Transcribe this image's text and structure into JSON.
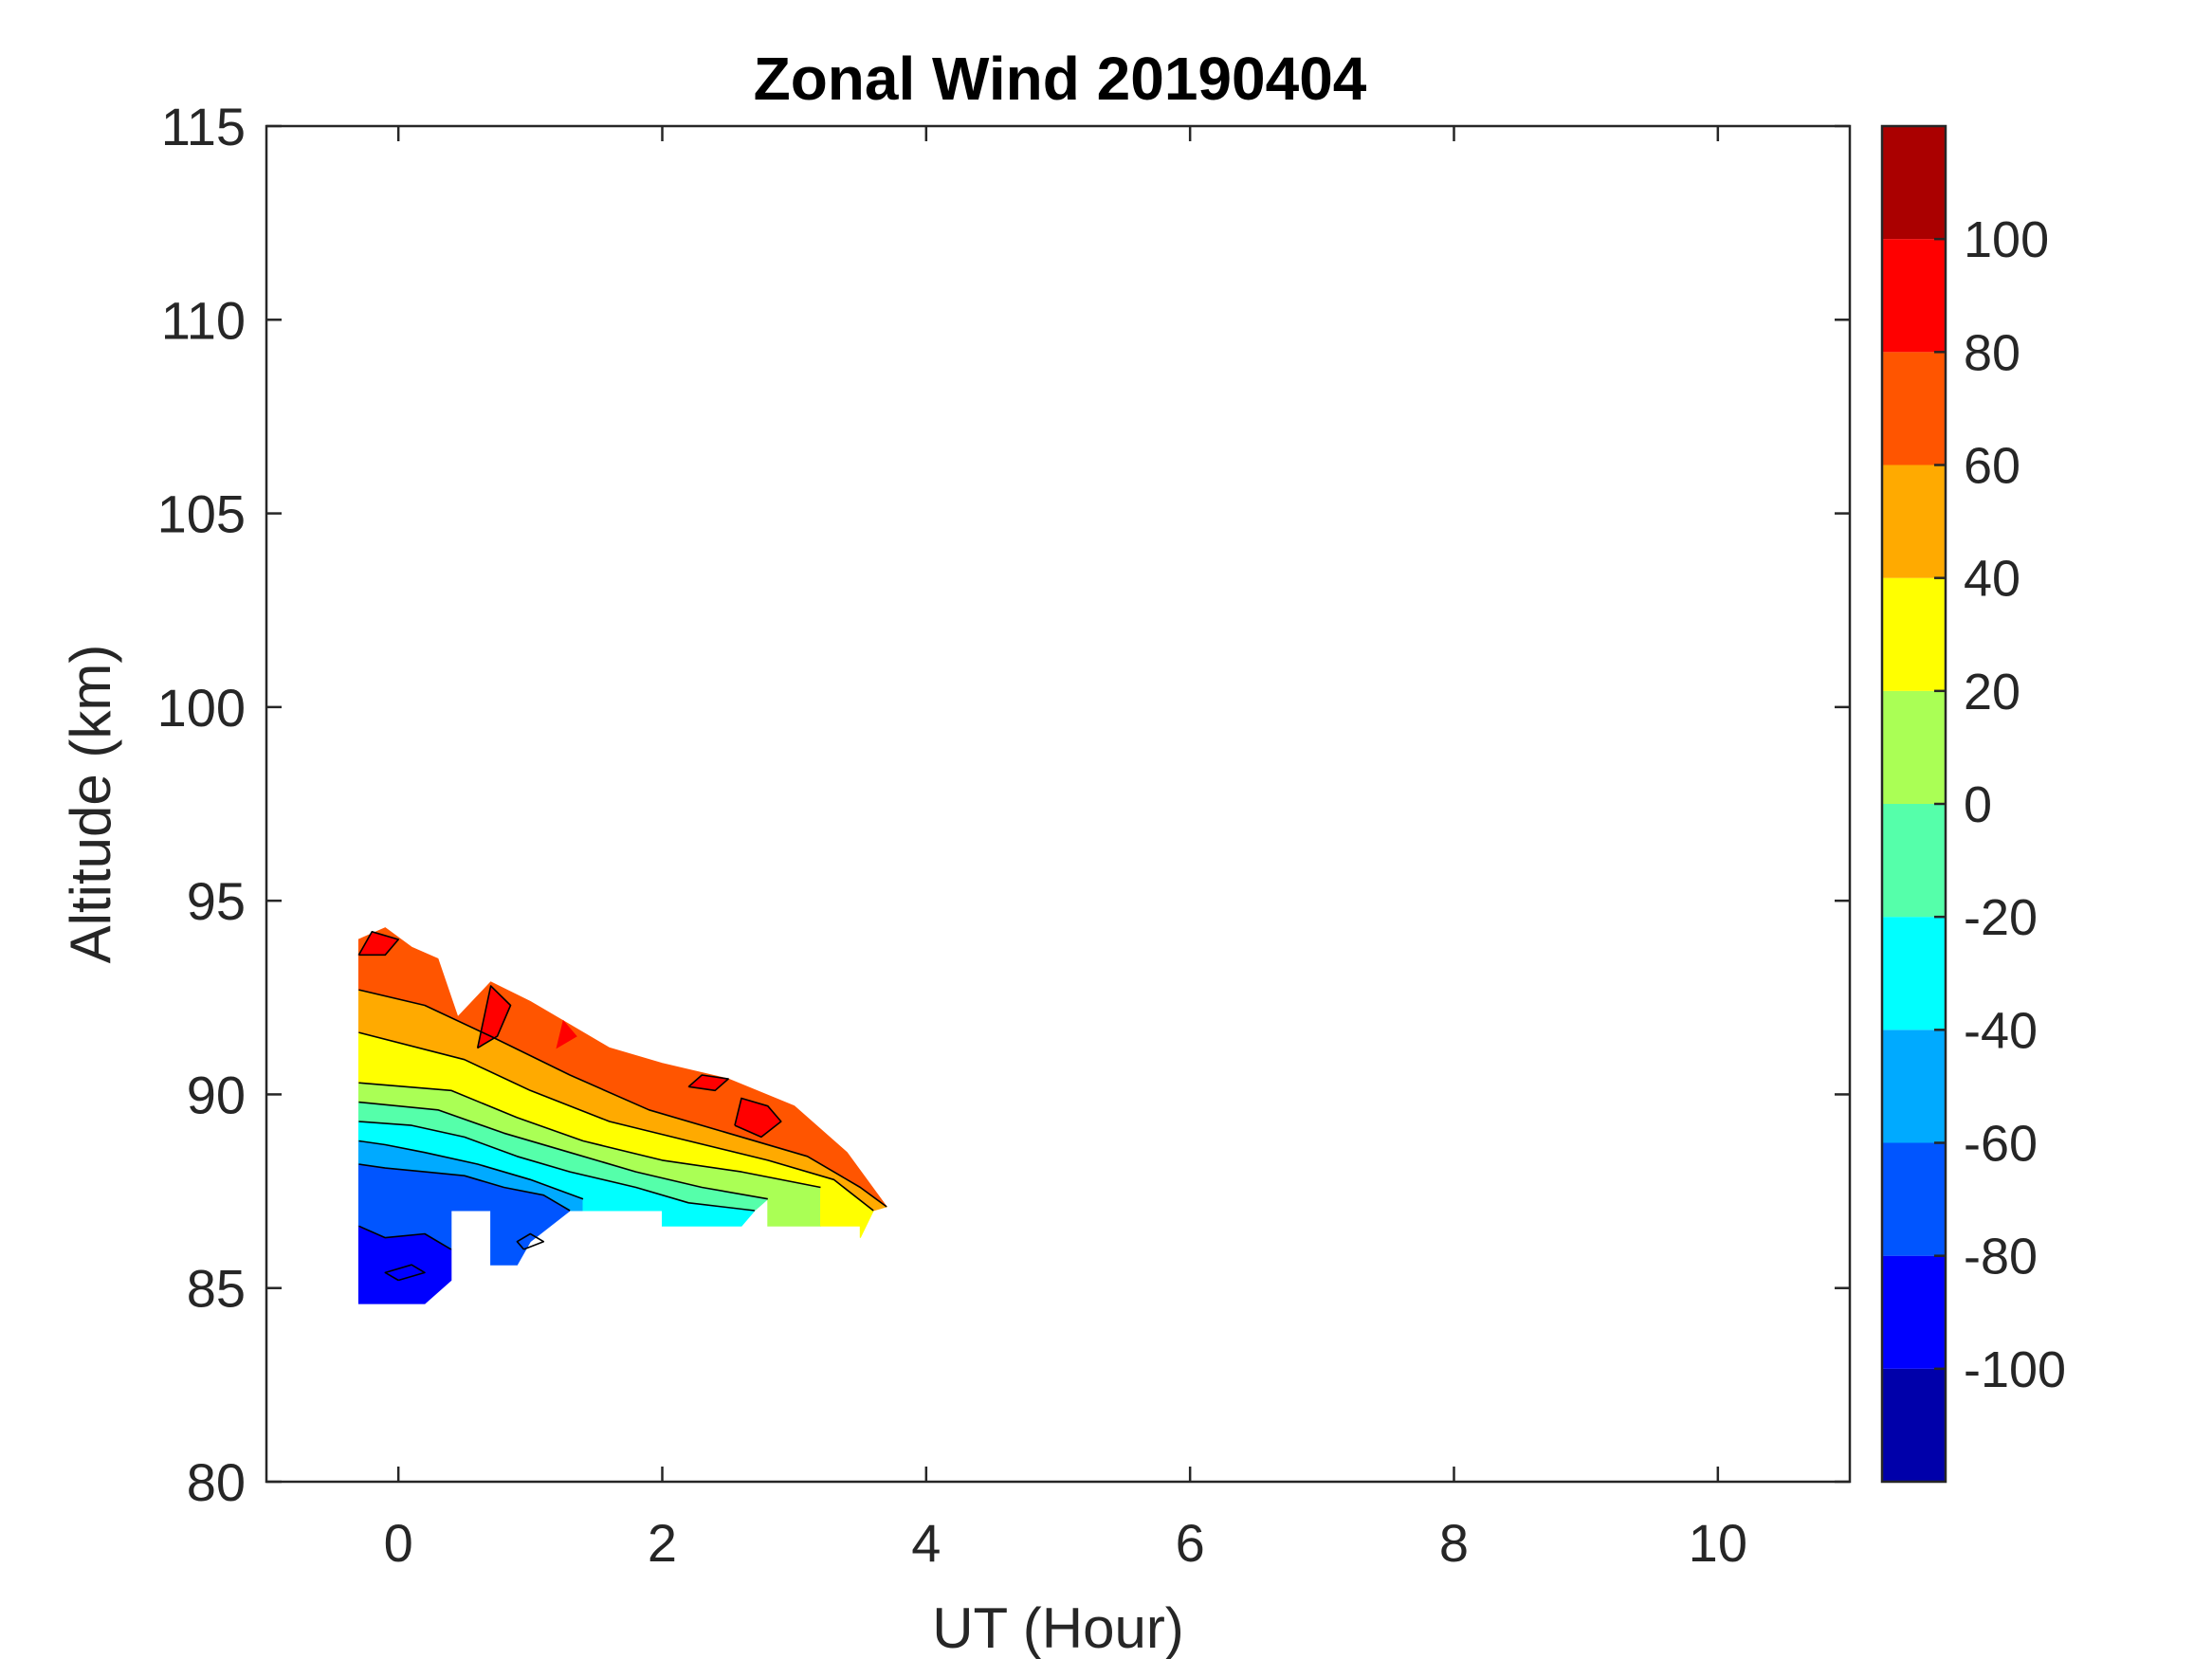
{
  "chart_data": {
    "type": "contour",
    "title": "Zonal Wind 20190404",
    "xlabel": "UT (Hour)",
    "ylabel": "Altitude (km)",
    "xlim": [
      -1,
      11
    ],
    "ylim": [
      80,
      115
    ],
    "x_ticks": [
      "0",
      "2",
      "4",
      "6",
      "8",
      "10"
    ],
    "y_ticks": [
      "80",
      "85",
      "90",
      "95",
      "100",
      "105",
      "110",
      "115"
    ],
    "x_tick_values": [
      0,
      2,
      4,
      6,
      8,
      10
    ],
    "y_tick_values": [
      80,
      85,
      90,
      95,
      100,
      105,
      110,
      115
    ],
    "colorbar": {
      "range": [
        -120,
        120
      ],
      "ticks": [
        "-100",
        "-80",
        "-60",
        "-40",
        "-20",
        "0",
        "20",
        "40",
        "60",
        "80",
        "100"
      ],
      "tick_values": [
        -100,
        -80,
        -60,
        -40,
        -20,
        0,
        20,
        40,
        60,
        80,
        100
      ],
      "levels": [
        {
          "min": -120,
          "max": -100,
          "color": "#0000aa"
        },
        {
          "min": -100,
          "max": -80,
          "color": "#0000ff"
        },
        {
          "min": -80,
          "max": -60,
          "color": "#0055ff"
        },
        {
          "min": -60,
          "max": -40,
          "color": "#00aaff"
        },
        {
          "min": -40,
          "max": -20,
          "color": "#00ffff"
        },
        {
          "min": -20,
          "max": 0,
          "color": "#55ffaa"
        },
        {
          "min": 0,
          "max": 20,
          "color": "#aaff55"
        },
        {
          "min": 20,
          "max": 40,
          "color": "#ffff00"
        },
        {
          "min": 40,
          "max": 60,
          "color": "#ffaa00"
        },
        {
          "min": 60,
          "max": 80,
          "color": "#ff5500"
        },
        {
          "min": 80,
          "max": 100,
          "color": "#ff0000"
        },
        {
          "min": 100,
          "max": 120,
          "color": "#aa0000"
        }
      ]
    },
    "data_coverage": {
      "x_range": [
        -0.3,
        3.7
      ],
      "altitude_range": [
        84.5,
        94.5
      ],
      "top_boundary": [
        [
          -0.3,
          94.0
        ],
        [
          -0.1,
          94.3
        ],
        [
          0.1,
          93.8
        ],
        [
          0.3,
          93.5
        ],
        [
          0.45,
          92.0
        ],
        [
          0.7,
          92.9
        ],
        [
          1.0,
          92.4
        ],
        [
          1.3,
          91.8
        ],
        [
          1.6,
          91.2
        ],
        [
          2.0,
          90.8
        ],
        [
          2.5,
          90.4
        ],
        [
          3.0,
          89.7
        ],
        [
          3.4,
          88.5
        ],
        [
          3.7,
          87.1
        ]
      ],
      "bottom_boundary": [
        [
          3.7,
          87.1
        ],
        [
          3.5,
          86.6
        ],
        [
          3.0,
          86.6
        ],
        [
          2.5,
          86.8
        ],
        [
          2.0,
          86.6
        ],
        [
          1.4,
          87.0
        ],
        [
          1.0,
          86.2
        ],
        [
          0.9,
          85.6
        ],
        [
          0.7,
          85.6
        ],
        [
          0.7,
          87.0
        ],
        [
          0.4,
          87.0
        ],
        [
          0.4,
          85.2
        ],
        [
          0.2,
          84.6
        ],
        [
          -0.3,
          84.6
        ]
      ],
      "note": "Zonal wind values (m/s) increase with altitude: about -100 near 85 km, about 0 near 89 km, about 80 near 93 km; isotherm-like bands tilt downward with increasing UT."
    },
    "bands": [
      {
        "level": -100,
        "points": [
          [
            -0.3,
            84.6
          ],
          [
            0.2,
            84.6
          ],
          [
            0.4,
            85.2
          ],
          [
            0.4,
            86.0
          ],
          [
            0.2,
            86.4
          ],
          [
            -0.1,
            86.3
          ],
          [
            -0.3,
            86.6
          ]
        ]
      },
      {
        "level": -80,
        "points": [
          [
            -0.3,
            86.6
          ],
          [
            -0.1,
            86.3
          ],
          [
            0.2,
            86.4
          ],
          [
            0.4,
            86.0
          ],
          [
            0.4,
            87.0
          ],
          [
            0.7,
            87.0
          ],
          [
            0.7,
            85.6
          ],
          [
            0.9,
            85.6
          ],
          [
            1.0,
            86.2
          ],
          [
            1.3,
            87.0
          ],
          [
            1.1,
            87.4
          ],
          [
            0.8,
            87.6
          ],
          [
            0.5,
            87.9
          ],
          [
            0.2,
            88.0
          ],
          [
            -0.1,
            88.1
          ],
          [
            -0.3,
            88.2
          ]
        ]
      },
      {
        "level": -60,
        "points": [
          [
            -0.3,
            88.2
          ],
          [
            -0.1,
            88.1
          ],
          [
            0.2,
            88.0
          ],
          [
            0.5,
            87.9
          ],
          [
            0.8,
            87.6
          ],
          [
            1.1,
            87.4
          ],
          [
            1.3,
            87.0
          ],
          [
            1.4,
            87.0
          ],
          [
            1.4,
            87.3
          ],
          [
            1.0,
            87.8
          ],
          [
            0.6,
            88.2
          ],
          [
            0.2,
            88.5
          ],
          [
            -0.1,
            88.7
          ],
          [
            -0.3,
            88.8
          ]
        ]
      },
      {
        "level": -40,
        "points": [
          [
            -0.3,
            88.8
          ],
          [
            -0.1,
            88.7
          ],
          [
            0.2,
            88.5
          ],
          [
            0.6,
            88.2
          ],
          [
            1.0,
            87.8
          ],
          [
            1.4,
            87.3
          ],
          [
            1.4,
            87.0
          ],
          [
            2.0,
            87.0
          ],
          [
            2.0,
            86.6
          ],
          [
            2.6,
            86.6
          ],
          [
            2.7,
            87.0
          ],
          [
            2.2,
            87.2
          ],
          [
            1.8,
            87.6
          ],
          [
            1.3,
            88.0
          ],
          [
            0.9,
            88.4
          ],
          [
            0.5,
            88.9
          ],
          [
            0.1,
            89.2
          ],
          [
            -0.3,
            89.3
          ]
        ]
      },
      {
        "level": -20,
        "points": [
          [
            -0.3,
            89.3
          ],
          [
            0.1,
            89.2
          ],
          [
            0.5,
            88.9
          ],
          [
            0.9,
            88.4
          ],
          [
            1.3,
            88.0
          ],
          [
            1.8,
            87.6
          ],
          [
            2.2,
            87.2
          ],
          [
            2.7,
            87.0
          ],
          [
            2.8,
            87.3
          ],
          [
            2.3,
            87.6
          ],
          [
            1.8,
            88.0
          ],
          [
            1.3,
            88.5
          ],
          [
            0.8,
            89.0
          ],
          [
            0.3,
            89.6
          ],
          [
            -0.3,
            89.8
          ]
        ]
      },
      {
        "level": 0,
        "points": [
          [
            -0.3,
            89.8
          ],
          [
            0.3,
            89.6
          ],
          [
            0.8,
            89.0
          ],
          [
            1.3,
            88.5
          ],
          [
            1.8,
            88.0
          ],
          [
            2.3,
            87.6
          ],
          [
            2.8,
            87.3
          ],
          [
            2.8,
            86.6
          ],
          [
            3.2,
            86.6
          ],
          [
            3.2,
            87.6
          ],
          [
            2.6,
            88.0
          ],
          [
            2.0,
            88.3
          ],
          [
            1.4,
            88.8
          ],
          [
            0.9,
            89.4
          ],
          [
            0.4,
            90.1
          ],
          [
            -0.3,
            90.3
          ]
        ]
      },
      {
        "level": 20,
        "points": [
          [
            -0.3,
            90.3
          ],
          [
            0.4,
            90.1
          ],
          [
            0.9,
            89.4
          ],
          [
            1.4,
            88.8
          ],
          [
            2.0,
            88.3
          ],
          [
            2.6,
            88.0
          ],
          [
            3.2,
            87.6
          ],
          [
            3.2,
            86.6
          ],
          [
            3.5,
            86.6
          ],
          [
            3.5,
            86.3
          ],
          [
            3.6,
            87.0
          ],
          [
            3.3,
            87.8
          ],
          [
            2.8,
            88.3
          ],
          [
            2.2,
            88.8
          ],
          [
            1.6,
            89.3
          ],
          [
            1.0,
            90.1
          ],
          [
            0.5,
            90.9
          ],
          [
            -0.3,
            91.6
          ]
        ]
      },
      {
        "level": 40,
        "points": [
          [
            -0.3,
            91.6
          ],
          [
            0.5,
            90.9
          ],
          [
            1.0,
            90.1
          ],
          [
            1.6,
            89.3
          ],
          [
            2.2,
            88.8
          ],
          [
            2.8,
            88.3
          ],
          [
            3.3,
            87.8
          ],
          [
            3.6,
            87.0
          ],
          [
            3.7,
            87.1
          ],
          [
            3.5,
            87.6
          ],
          [
            3.1,
            88.4
          ],
          [
            2.5,
            89.0
          ],
          [
            1.9,
            89.6
          ],
          [
            1.3,
            90.5
          ],
          [
            0.7,
            91.5
          ],
          [
            0.2,
            92.3
          ],
          [
            -0.3,
            92.7
          ]
        ]
      },
      {
        "level": 60,
        "points": [
          [
            -0.3,
            92.7
          ],
          [
            0.2,
            92.3
          ],
          [
            0.7,
            91.5
          ],
          [
            1.3,
            90.5
          ],
          [
            1.9,
            89.6
          ],
          [
            2.5,
            89.0
          ],
          [
            3.1,
            88.4
          ],
          [
            3.5,
            87.6
          ],
          [
            3.7,
            87.1
          ],
          [
            3.4,
            88.5
          ],
          [
            3.0,
            89.7
          ],
          [
            2.5,
            90.4
          ],
          [
            2.0,
            90.8
          ],
          [
            1.6,
            91.2
          ],
          [
            1.3,
            91.8
          ],
          [
            1.0,
            92.4
          ],
          [
            0.7,
            92.9
          ],
          [
            0.45,
            92.0
          ],
          [
            0.3,
            93.5
          ],
          [
            0.1,
            93.8
          ],
          [
            -0.1,
            94.3
          ],
          [
            -0.3,
            94.0
          ]
        ]
      },
      {
        "level": 80,
        "points": [
          [
            -0.3,
            93.6
          ],
          [
            -0.2,
            94.2
          ],
          [
            0.0,
            94.0
          ],
          [
            -0.1,
            93.6
          ]
        ]
      },
      {
        "level": 80,
        "points": [
          [
            0.6,
            91.2
          ],
          [
            0.7,
            92.8
          ],
          [
            0.85,
            92.3
          ],
          [
            0.75,
            91.5
          ]
        ]
      },
      {
        "level": 80,
        "points": [
          [
            1.2,
            91.2
          ],
          [
            1.25,
            91.9
          ],
          [
            1.35,
            91.5
          ]
        ]
      },
      {
        "level": 80,
        "points": [
          [
            2.2,
            90.2
          ],
          [
            2.3,
            90.5
          ],
          [
            2.5,
            90.4
          ],
          [
            2.4,
            90.1
          ]
        ]
      },
      {
        "level": 80,
        "points": [
          [
            2.55,
            89.2
          ],
          [
            2.6,
            89.9
          ],
          [
            2.8,
            89.7
          ],
          [
            2.9,
            89.3
          ],
          [
            2.75,
            88.9
          ]
        ]
      }
    ],
    "contour_lines": [
      [
        [
          -0.3,
          86.6
        ],
        [
          -0.1,
          86.3
        ],
        [
          0.2,
          86.4
        ],
        [
          0.4,
          86.0
        ]
      ],
      [
        [
          -0.3,
          88.2
        ],
        [
          -0.1,
          88.1
        ],
        [
          0.2,
          88.0
        ],
        [
          0.5,
          87.9
        ],
        [
          0.8,
          87.6
        ],
        [
          1.1,
          87.4
        ],
        [
          1.3,
          87.0
        ]
      ],
      [
        [
          -0.3,
          88.8
        ],
        [
          -0.1,
          88.7
        ],
        [
          0.2,
          88.5
        ],
        [
          0.6,
          88.2
        ],
        [
          1.0,
          87.8
        ],
        [
          1.4,
          87.3
        ]
      ],
      [
        [
          -0.3,
          89.3
        ],
        [
          0.1,
          89.2
        ],
        [
          0.5,
          88.9
        ],
        [
          0.9,
          88.4
        ],
        [
          1.3,
          88.0
        ],
        [
          1.8,
          87.6
        ],
        [
          2.2,
          87.2
        ],
        [
          2.7,
          87.0
        ]
      ],
      [
        [
          -0.3,
          89.8
        ],
        [
          0.3,
          89.6
        ],
        [
          0.8,
          89.0
        ],
        [
          1.3,
          88.5
        ],
        [
          1.8,
          88.0
        ],
        [
          2.3,
          87.6
        ],
        [
          2.8,
          87.3
        ]
      ],
      [
        [
          -0.3,
          90.3
        ],
        [
          0.4,
          90.1
        ],
        [
          0.9,
          89.4
        ],
        [
          1.4,
          88.8
        ],
        [
          2.0,
          88.3
        ],
        [
          2.6,
          88.0
        ],
        [
          3.2,
          87.6
        ]
      ],
      [
        [
          -0.3,
          91.6
        ],
        [
          0.5,
          90.9
        ],
        [
          1.0,
          90.1
        ],
        [
          1.6,
          89.3
        ],
        [
          2.2,
          88.8
        ],
        [
          2.8,
          88.3
        ],
        [
          3.3,
          87.8
        ],
        [
          3.6,
          87.0
        ]
      ],
      [
        [
          -0.3,
          92.7
        ],
        [
          0.2,
          92.3
        ],
        [
          0.7,
          91.5
        ],
        [
          1.3,
          90.5
        ],
        [
          1.9,
          89.6
        ],
        [
          2.5,
          89.0
        ],
        [
          3.1,
          88.4
        ],
        [
          3.5,
          87.6
        ],
        [
          3.7,
          87.1
        ]
      ],
      [
        [
          -0.3,
          93.6
        ],
        [
          -0.2,
          94.2
        ],
        [
          0.0,
          94.0
        ],
        [
          -0.1,
          93.6
        ],
        [
          -0.3,
          93.6
        ]
      ],
      [
        [
          0.6,
          91.2
        ],
        [
          0.7,
          92.8
        ],
        [
          0.85,
          92.3
        ],
        [
          0.75,
          91.5
        ],
        [
          0.6,
          91.2
        ]
      ],
      [
        [
          2.2,
          90.2
        ],
        [
          2.3,
          90.5
        ],
        [
          2.5,
          90.4
        ],
        [
          2.4,
          90.1
        ],
        [
          2.2,
          90.2
        ]
      ],
      [
        [
          2.55,
          89.2
        ],
        [
          2.6,
          89.9
        ],
        [
          2.8,
          89.7
        ],
        [
          2.9,
          89.3
        ],
        [
          2.75,
          88.9
        ],
        [
          2.55,
          89.2
        ]
      ],
      [
        [
          0.0,
          85.2
        ],
        [
          0.2,
          85.4
        ],
        [
          0.1,
          85.6
        ],
        [
          -0.1,
          85.4
        ],
        [
          0.0,
          85.2
        ]
      ],
      [
        [
          0.95,
          86.0
        ],
        [
          1.1,
          86.2
        ],
        [
          1.0,
          86.4
        ],
        [
          0.9,
          86.2
        ],
        [
          0.95,
          86.0
        ]
      ]
    ]
  }
}
